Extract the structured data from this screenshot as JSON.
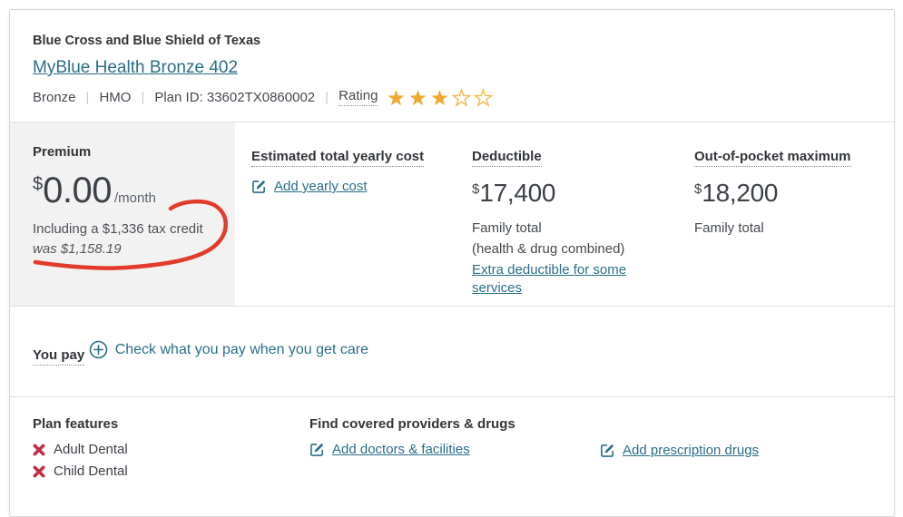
{
  "colors": {
    "link_teal": "#2a6e88",
    "star_gold": "#f0a830",
    "star_empty_stroke": "#f1bb50",
    "cross_red": "#c32b40",
    "annotation_red": "#e23b2c",
    "premium_bg": "#f2f2f2"
  },
  "header": {
    "brand": "Blue Cross and Blue Shield of Texas",
    "plan_name": "MyBlue Health Bronze 402",
    "metal_level": "Bronze",
    "plan_type": "HMO",
    "plan_id": "Plan ID: 33602TX0860002",
    "rating_label": "Rating",
    "rating": {
      "value": 3,
      "max": 5
    }
  },
  "premium": {
    "title": "Premium",
    "currency": "$",
    "amount": "0.00",
    "period": "/month",
    "tax_credit_note": "Including a $1,336 tax credit",
    "was_note": "was $1,158.19"
  },
  "yearly_cost": {
    "title": "Estimated total yearly cost",
    "add_link": "Add yearly cost"
  },
  "deductible": {
    "title": "Deductible",
    "currency": "$",
    "amount": "17,400",
    "family_total": "Family total",
    "combined_note": "(health & drug combined)",
    "extra_link": "Extra deductible for some services"
  },
  "oop_max": {
    "title": "Out-of-pocket maximum",
    "currency": "$",
    "amount": "18,200",
    "family_total": "Family total"
  },
  "you_pay": {
    "title": "You pay",
    "check_link": "Check what you pay when you get care"
  },
  "plan_features": {
    "title": "Plan features",
    "items": [
      {
        "label": "Adult Dental",
        "included": false
      },
      {
        "label": "Child Dental",
        "included": false
      }
    ]
  },
  "providers": {
    "title": "Find covered providers & drugs",
    "add_doctors_link": "Add doctors & facilities",
    "add_drugs_link": "Add prescription drugs"
  }
}
